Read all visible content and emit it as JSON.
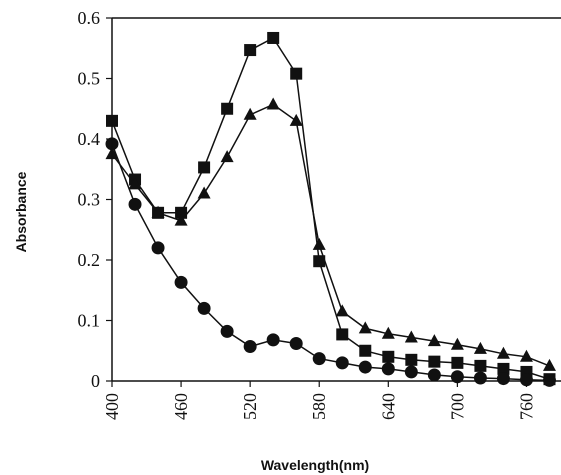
{
  "chart_data": {
    "type": "line",
    "title": "",
    "xlabel": "Wavelength(nm)",
    "ylabel": "Absorbance",
    "xlim": [
      400,
      790
    ],
    "ylim": [
      0,
      0.6
    ],
    "x_ticks": [
      400,
      460,
      520,
      580,
      640,
      700,
      760
    ],
    "x_tick_labels": [
      "400",
      "460",
      "520",
      "580",
      "640",
      "700",
      "760"
    ],
    "y_ticks": [
      0,
      0.1,
      0.2,
      0.3,
      0.4,
      0.5,
      0.6
    ],
    "y_tick_labels": [
      "0",
      "0.1",
      "0.2",
      "0.3",
      "0.4",
      "0.5",
      "0.6"
    ],
    "grid": false,
    "legend": "none",
    "series": [
      {
        "marker": "square",
        "color": "#111111",
        "x": [
          400,
          420,
          440,
          460,
          480,
          500,
          520,
          540,
          560,
          580,
          600,
          620,
          640,
          660,
          680,
          700,
          720,
          740,
          760,
          780
        ],
        "y": [
          0.43,
          0.333,
          0.278,
          0.278,
          0.353,
          0.45,
          0.547,
          0.567,
          0.508,
          0.198,
          0.077,
          0.05,
          0.04,
          0.035,
          0.032,
          0.03,
          0.025,
          0.02,
          0.015,
          0.003
        ]
      },
      {
        "marker": "triangle",
        "color": "#111111",
        "x": [
          400,
          420,
          440,
          460,
          480,
          500,
          520,
          540,
          560,
          580,
          600,
          620,
          640,
          660,
          680,
          700,
          720,
          740,
          760,
          780
        ],
        "y": [
          0.375,
          0.325,
          0.278,
          0.265,
          0.31,
          0.37,
          0.44,
          0.457,
          0.43,
          0.225,
          0.115,
          0.087,
          0.078,
          0.072,
          0.066,
          0.06,
          0.053,
          0.045,
          0.04,
          0.025
        ]
      },
      {
        "marker": "circle",
        "color": "#111111",
        "x": [
          400,
          420,
          440,
          460,
          480,
          500,
          520,
          540,
          560,
          580,
          600,
          620,
          640,
          660,
          680,
          700,
          720,
          740,
          760,
          780
        ],
        "y": [
          0.392,
          0.292,
          0.22,
          0.163,
          0.12,
          0.082,
          0.057,
          0.068,
          0.062,
          0.037,
          0.03,
          0.023,
          0.02,
          0.015,
          0.01,
          0.007,
          0.005,
          0.004,
          0.002,
          0.001
        ]
      }
    ]
  }
}
